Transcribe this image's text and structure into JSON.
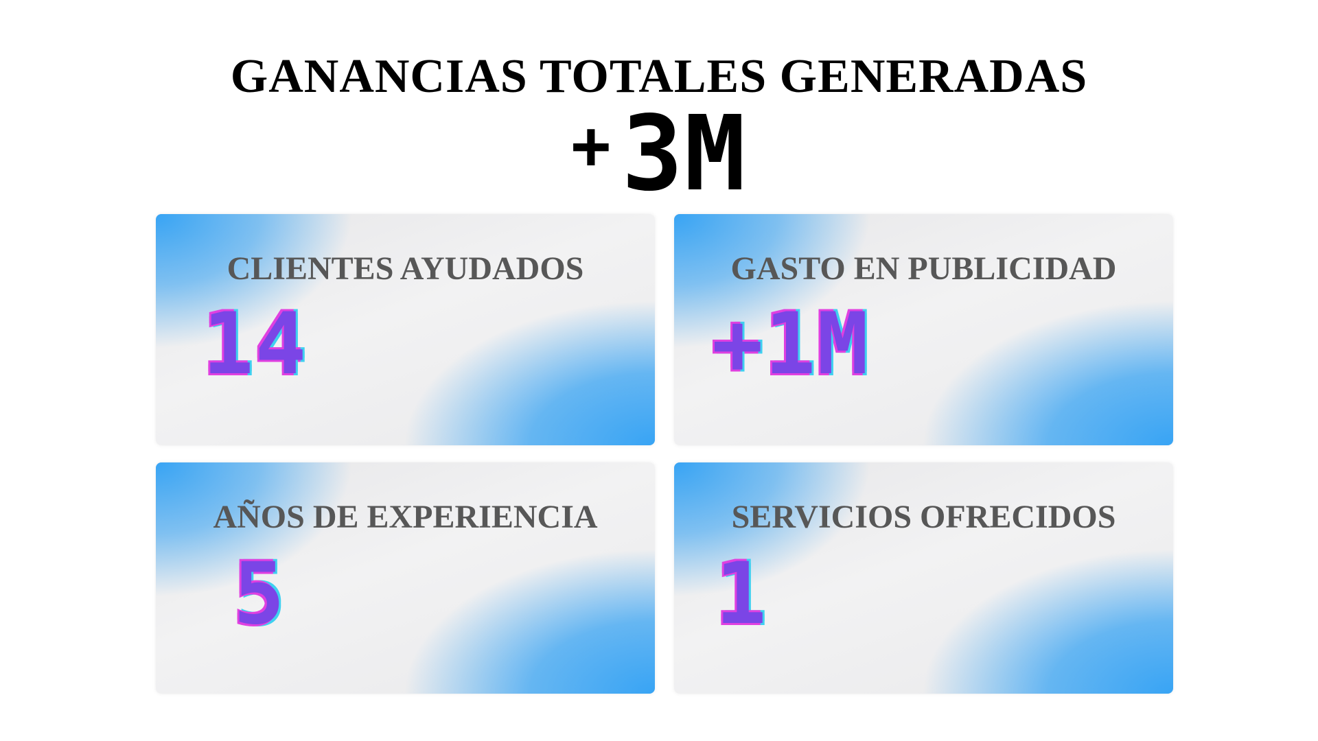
{
  "header": {
    "title": "GANANCIAS TOTALES GENERADAS",
    "total_prefix": "+",
    "total_value": "3M"
  },
  "stats": [
    {
      "label": "CLIENTES AYUDADOS",
      "value": "14"
    },
    {
      "label": "GASTO EN PUBLICIDAD",
      "value": "+1M"
    },
    {
      "label": "AÑOS DE EXPERIENCIA",
      "value": "5"
    },
    {
      "label": "SERVICIOS OFRECIDOS",
      "value": "1"
    }
  ],
  "colors": {
    "title": "#000000",
    "label": "#575757",
    "value": "#7b45e6",
    "value_outline_pink": "#e040e0",
    "value_outline_cyan": "#3fd0f0",
    "card_blue": "#38a4f4",
    "card_gray": "#eeeeef"
  }
}
